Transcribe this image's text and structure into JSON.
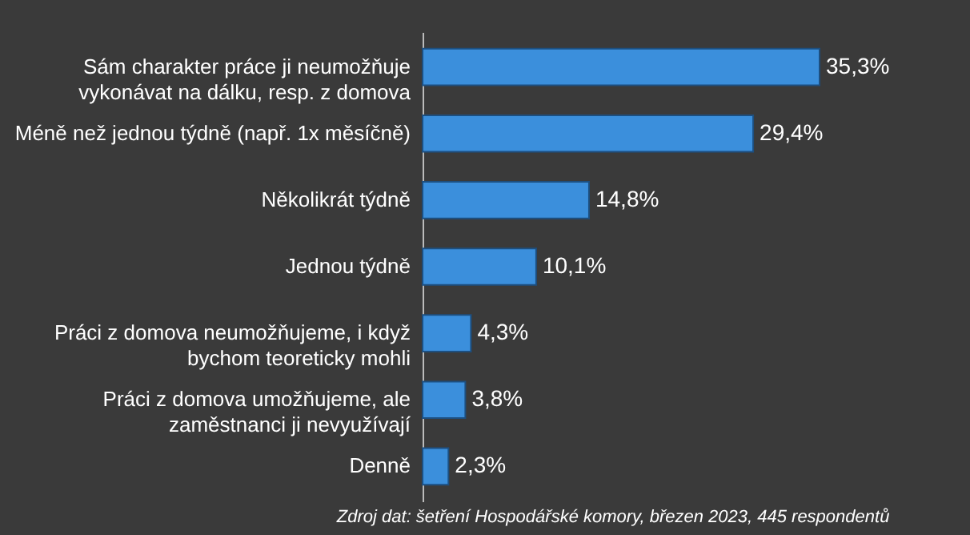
{
  "chart_data": {
    "type": "bar",
    "orientation": "horizontal",
    "categories": [
      "Sám charakter práce ji neumožňuje\nvykonávat na dálku, resp. z domova",
      "Méně než jednou týdně (např. 1x měsíčně)",
      "Několikrát týdně",
      "Jednou týdně",
      "Práci z domova neumožňujeme, i když\nbychom teoreticky mohli",
      "Práci z domova umožňujeme, ale\nzaměstnanci ji nevyužívají",
      "Denně"
    ],
    "values": [
      35.3,
      29.4,
      14.8,
      10.1,
      4.3,
      3.8,
      2.3
    ],
    "value_labels": [
      "35,3%",
      "29,4%",
      "14,8%",
      "10,1%",
      "4,3%",
      "3,8%",
      "2,3%"
    ],
    "color": "#3b8fdc",
    "annotations": [
      "Zdroj dat: šetření Hospodářské komory, březen 2023, 445 respondentů"
    ]
  }
}
